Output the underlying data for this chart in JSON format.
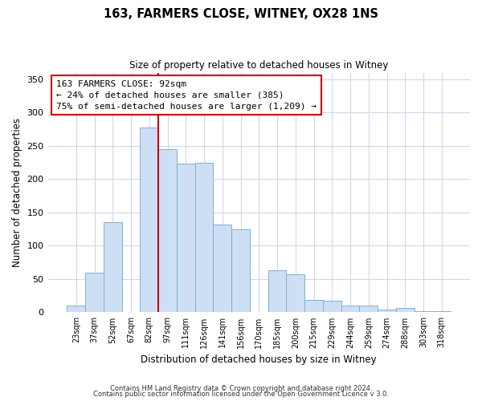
{
  "title": "163, FARMERS CLOSE, WITNEY, OX28 1NS",
  "subtitle": "Size of property relative to detached houses in Witney",
  "xlabel": "Distribution of detached houses by size in Witney",
  "ylabel": "Number of detached properties",
  "bar_labels": [
    "23sqm",
    "37sqm",
    "52sqm",
    "67sqm",
    "82sqm",
    "97sqm",
    "111sqm",
    "126sqm",
    "141sqm",
    "156sqm",
    "170sqm",
    "185sqm",
    "200sqm",
    "215sqm",
    "229sqm",
    "244sqm",
    "259sqm",
    "274sqm",
    "288sqm",
    "303sqm",
    "318sqm"
  ],
  "bar_values": [
    10,
    60,
    135,
    0,
    278,
    245,
    223,
    225,
    132,
    125,
    0,
    63,
    57,
    19,
    17,
    10,
    10,
    4,
    6,
    2,
    2
  ],
  "bar_color": "#ccdff5",
  "bar_edge_color": "#85aed0",
  "vline_x_index": 4,
  "vline_color": "#cc0000",
  "annotation_text": "163 FARMERS CLOSE: 92sqm\n← 24% of detached houses are smaller (385)\n75% of semi-detached houses are larger (1,209) →",
  "annotation_box_color": "#ffffff",
  "annotation_box_edge": "#cc0000",
  "ylim": [
    0,
    360
  ],
  "yticks": [
    0,
    50,
    100,
    150,
    200,
    250,
    300,
    350
  ],
  "footer_line1": "Contains HM Land Registry data © Crown copyright and database right 2024.",
  "footer_line2": "Contains public sector information licensed under the Open Government Licence v 3.0.",
  "bg_color": "#ffffff",
  "plot_bg_color": "#ffffff",
  "grid_color": "#d0d8e8"
}
